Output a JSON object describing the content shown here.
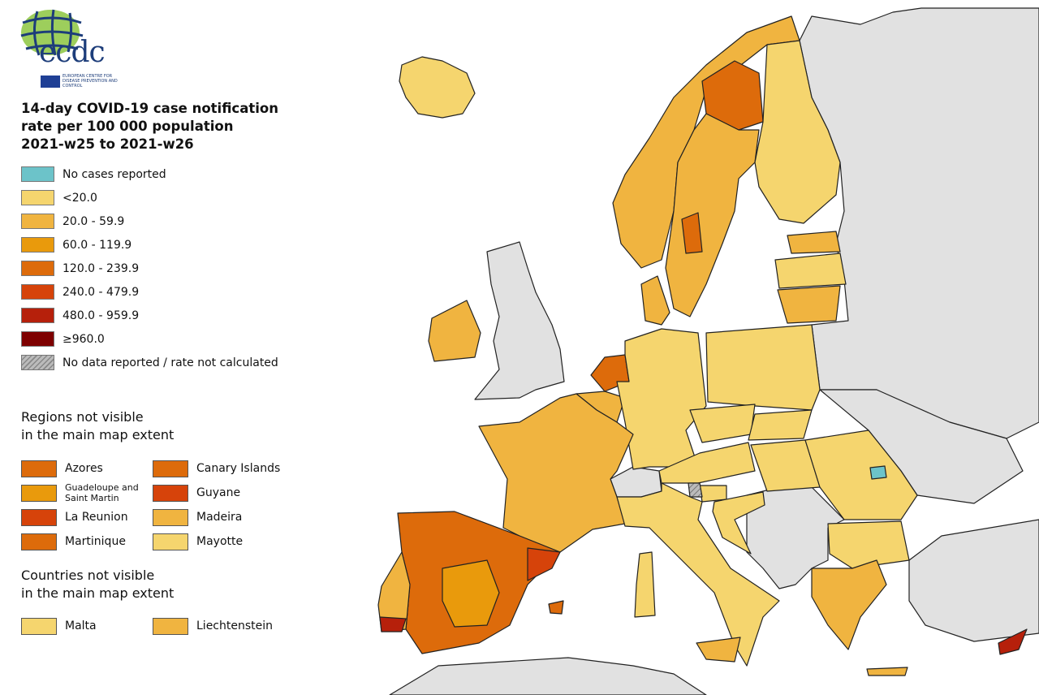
{
  "logo": {
    "text": "ecdc",
    "subtitle": "EUROPEAN CENTRE FOR DISEASE PREVENTION AND CONTROL"
  },
  "title": {
    "line1": "14-day COVID-19 case notification",
    "line2": "rate per 100 000 population",
    "line3": "2021-w25 to 2021-w26"
  },
  "legend": [
    {
      "label": "No cases reported",
      "color": "#6cc3c9"
    },
    {
      "label": "<20.0",
      "color": "#f5d56e"
    },
    {
      "label": "20.0 - 59.9",
      "color": "#f0b440"
    },
    {
      "label": "60.0 - 119.9",
      "color": "#e99a0c"
    },
    {
      "label": "120.0 - 239.9",
      "color": "#dd6b0b"
    },
    {
      "label": "240.0 - 479.9",
      "color": "#d6430a"
    },
    {
      "label": "480.0 - 959.9",
      "color": "#b6200b"
    },
    {
      "label": "≥960.0",
      "color": "#7e0000"
    },
    {
      "label": "No data reported / rate not calculated",
      "color": "hatched"
    }
  ],
  "regions": {
    "heading1": "Regions not visible",
    "heading2": "in the main map extent",
    "items": [
      {
        "label": "Azores",
        "color": "#dd6b0b"
      },
      {
        "label": "Canary Islands",
        "color": "#dd6b0b"
      },
      {
        "label": "Guadeloupe and Saint Martin",
        "color": "#e99a0c"
      },
      {
        "label": "Guyane",
        "color": "#d6430a"
      },
      {
        "label": "La Reunion",
        "color": "#d6430a"
      },
      {
        "label": "Madeira",
        "color": "#f0b440"
      },
      {
        "label": "Martinique",
        "color": "#dd6b0b"
      },
      {
        "label": "Mayotte",
        "color": "#f5d56e"
      }
    ]
  },
  "countries": {
    "heading1": "Countries not visible",
    "heading2": "in the main map extent",
    "items": [
      {
        "label": "Malta",
        "color": "#f5d56e"
      },
      {
        "label": "Liechtenstein",
        "color": "#f0b440"
      }
    ]
  },
  "colors": {
    "non_eu": "#e1e1e1",
    "border": "#222222"
  }
}
